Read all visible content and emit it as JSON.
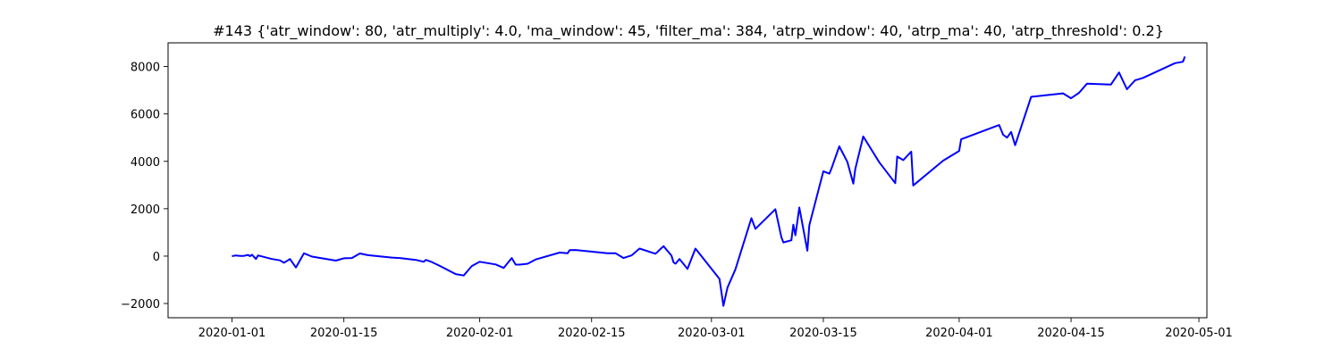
{
  "chart_data": {
    "type": "line",
    "title": "#143 {'atr_window': 80, 'atr_multiply': 4.0, 'ma_window': 45, 'filter_ma': 384, 'atrp_window': 40, 'atrp_ma': 40, 'atrp_threshold': 0.2}",
    "xlabel": "",
    "ylabel": "",
    "x_axis_type": "date",
    "xlim": [
      "2019-12-24",
      "2020-05-02"
    ],
    "ylim": [
      -2600,
      9000
    ],
    "grid": false,
    "legend": "none",
    "line_color": "#0000ff",
    "x_ticks": [
      "2020-01-01",
      "2020-01-15",
      "2020-02-01",
      "2020-02-15",
      "2020-03-01",
      "2020-03-15",
      "2020-04-01",
      "2020-04-15",
      "2020-05-01"
    ],
    "y_ticks": [
      -2000,
      0,
      2000,
      4000,
      6000,
      8000
    ],
    "series": [
      {
        "x": [
          "2020-01-01",
          "2020-01-01T12:00",
          "2020-01-02",
          "2020-01-02T12:00",
          "2020-01-03",
          "2020-01-03T06:00",
          "2020-01-03T12:00",
          "2020-01-04",
          "2020-01-04T06:00",
          "2020-01-06",
          "2020-01-07",
          "2020-01-07T12:00",
          "2020-01-08",
          "2020-01-08T06:00",
          "2020-01-09",
          "2020-01-10",
          "2020-01-11",
          "2020-01-14",
          "2020-01-15",
          "2020-01-16",
          "2020-01-17",
          "2020-01-18",
          "2020-01-21",
          "2020-01-22",
          "2020-01-24",
          "2020-01-25",
          "2020-01-25T06:00",
          "2020-01-26",
          "2020-01-27",
          "2020-01-29",
          "2020-01-30",
          "2020-01-30T12:00",
          "2020-01-31",
          "2020-02-01",
          "2020-02-03",
          "2020-02-04",
          "2020-02-05",
          "2020-02-05T12:00",
          "2020-02-06",
          "2020-02-07",
          "2020-02-08",
          "2020-02-11",
          "2020-02-12",
          "2020-02-12T06:00",
          "2020-02-13",
          "2020-02-17",
          "2020-02-18",
          "2020-02-19",
          "2020-02-20",
          "2020-02-21",
          "2020-02-23",
          "2020-02-24",
          "2020-02-25",
          "2020-02-25T06:00",
          "2020-02-25T12:00",
          "2020-02-26",
          "2020-02-27",
          "2020-02-28",
          "2020-03-02",
          "2020-03-02T12:00",
          "2020-03-03",
          "2020-03-04",
          "2020-03-06",
          "2020-03-06T12:00",
          "2020-03-09",
          "2020-03-09T18:00",
          "2020-03-10",
          "2020-03-11",
          "2020-03-11T06:00",
          "2020-03-11T12:00",
          "2020-03-12",
          "2020-03-13",
          "2020-03-13T06:00",
          "2020-03-15",
          "2020-03-15T18:00",
          "2020-03-16",
          "2020-03-17",
          "2020-03-18",
          "2020-03-18T18:00",
          "2020-03-19",
          "2020-03-20",
          "2020-03-22",
          "2020-03-24",
          "2020-03-24T06:00",
          "2020-03-25",
          "2020-03-26",
          "2020-03-26T06:00",
          "2020-03-30",
          "2020-04-01",
          "2020-04-01T06:00",
          "2020-04-06",
          "2020-04-06T12:00",
          "2020-04-07",
          "2020-04-07T12:00",
          "2020-04-08",
          "2020-04-10",
          "2020-04-14",
          "2020-04-15",
          "2020-04-16",
          "2020-04-17",
          "2020-04-20",
          "2020-04-21",
          "2020-04-22",
          "2020-04-23",
          "2020-04-24",
          "2020-04-28",
          "2020-04-29",
          "2020-04-29T06:00"
        ],
        "y": [
          0,
          30,
          10,
          10,
          50,
          0,
          60,
          -120,
          30,
          -120,
          -180,
          -280,
          -180,
          -120,
          -480,
          120,
          -20,
          -190,
          -90,
          -80,
          110,
          40,
          -60,
          -80,
          -160,
          -240,
          -160,
          -250,
          -410,
          -760,
          -820,
          -620,
          -420,
          -240,
          -350,
          -500,
          -80,
          -360,
          -360,
          -320,
          -140,
          150,
          120,
          250,
          260,
          120,
          120,
          -80,
          30,
          320,
          100,
          420,
          20,
          -260,
          -320,
          -120,
          -540,
          320,
          -960,
          -2100,
          -1330,
          -560,
          1600,
          1150,
          1980,
          800,
          580,
          670,
          1330,
          880,
          2050,
          230,
          1300,
          3580,
          3480,
          3680,
          4630,
          3980,
          3060,
          3680,
          5050,
          3960,
          3080,
          4200,
          4050,
          4410,
          2980,
          4030,
          4440,
          4930,
          5530,
          5120,
          5000,
          5240,
          4680,
          6720,
          6870,
          6660,
          6890,
          7280,
          7240,
          7750,
          7040,
          7420,
          7520,
          8140,
          8200,
          8420
        ]
      }
    ]
  }
}
